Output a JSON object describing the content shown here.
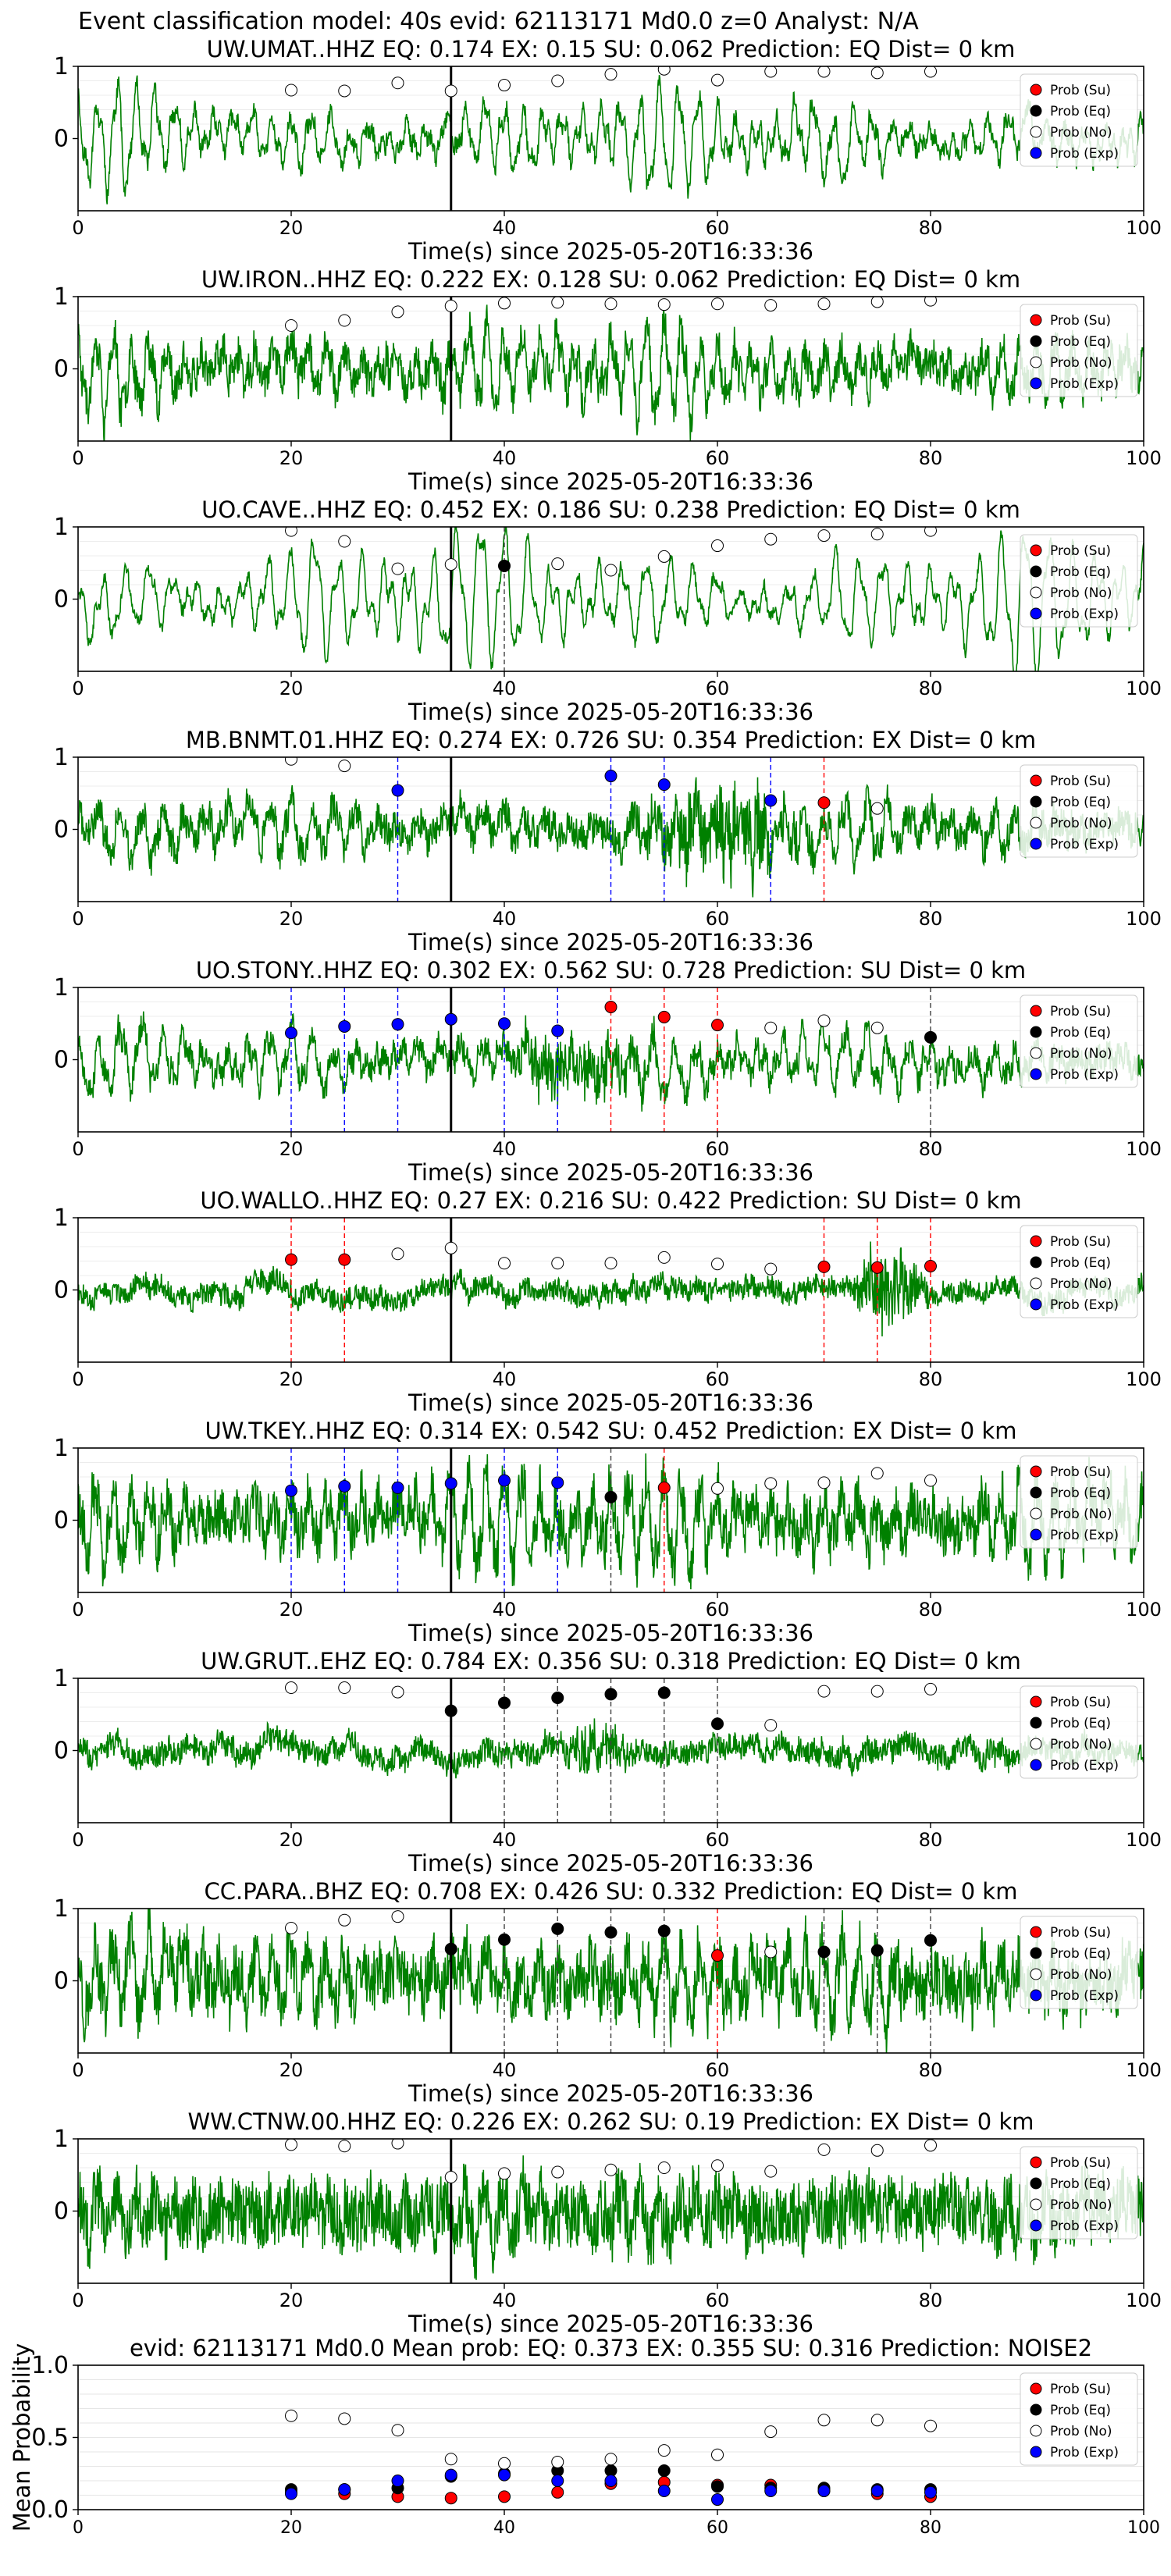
{
  "figure": {
    "suptitle": "Event classification model: 40s evid: 62113171 Md0.0 z=0 Analyst: N/A"
  },
  "legend_labels": [
    "Prob (Su)",
    "Prob (Eq)",
    "Prob (No)",
    "Prob (Exp)"
  ],
  "colors": {
    "waveform": "#008000",
    "su": "#ff0000",
    "eq": "#000000",
    "no": "#ffffff",
    "exp": "#0000ff",
    "origin_line": "#000000",
    "su_line": "#ff0000",
    "eq_line": "#404040",
    "exp_line": "#0000ff"
  },
  "chart_data": [
    {
      "type": "line",
      "title": "UW.UMAT..HHZ   EQ: 0.174  EX: 0.15  SU: 0.062   Prediction: EQ    Dist= 0 km",
      "xlabel": "Time(s) since 2025-05-20T16:33:36",
      "ylabel": "",
      "xlim": [
        0,
        100
      ],
      "ylim": [
        -1,
        1
      ],
      "xticks": [
        "0",
        "20",
        "40",
        "60",
        "80",
        "100"
      ],
      "yticks": [
        "0",
        "1"
      ],
      "origin_time": 35,
      "waveform": {
        "amp": 0.55,
        "freq": 0.55,
        "noise": 0.12,
        "seed": 11
      },
      "markers": [
        {
          "t": 20,
          "cls": "no",
          "p": 0.67
        },
        {
          "t": 25,
          "cls": "no",
          "p": 0.66
        },
        {
          "t": 30,
          "cls": "no",
          "p": 0.77
        },
        {
          "t": 35,
          "cls": "no",
          "p": 0.66
        },
        {
          "t": 40,
          "cls": "no",
          "p": 0.74
        },
        {
          "t": 45,
          "cls": "no",
          "p": 0.8
        },
        {
          "t": 50,
          "cls": "no",
          "p": 0.89
        },
        {
          "t": 55,
          "cls": "no",
          "p": 0.96
        },
        {
          "t": 60,
          "cls": "no",
          "p": 0.81
        },
        {
          "t": 65,
          "cls": "no",
          "p": 0.93
        },
        {
          "t": 70,
          "cls": "no",
          "p": 0.93
        },
        {
          "t": 75,
          "cls": "no",
          "p": 0.91
        },
        {
          "t": 80,
          "cls": "no",
          "p": 0.93
        }
      ]
    },
    {
      "type": "line",
      "title": "UW.IRON..HHZ   EQ: 0.222  EX: 0.128  SU: 0.062   Prediction: EQ    Dist= 0 km",
      "xlabel": "Time(s) since 2025-05-20T16:33:36",
      "ylabel": "",
      "xlim": [
        0,
        100
      ],
      "ylim": [
        -1,
        1
      ],
      "xticks": [
        "0",
        "20",
        "40",
        "60",
        "80",
        "100"
      ],
      "yticks": [
        "0",
        "1"
      ],
      "origin_time": 35,
      "waveform": {
        "amp": 0.5,
        "freq": 0.6,
        "noise": 0.25,
        "seed": 23
      },
      "markers": [
        {
          "t": 20,
          "cls": "no",
          "p": 0.6
        },
        {
          "t": 25,
          "cls": "no",
          "p": 0.67
        },
        {
          "t": 30,
          "cls": "no",
          "p": 0.79
        },
        {
          "t": 35,
          "cls": "no",
          "p": 0.87
        },
        {
          "t": 40,
          "cls": "no",
          "p": 0.91
        },
        {
          "t": 45,
          "cls": "no",
          "p": 0.92
        },
        {
          "t": 50,
          "cls": "no",
          "p": 0.9
        },
        {
          "t": 55,
          "cls": "no",
          "p": 0.89
        },
        {
          "t": 60,
          "cls": "no",
          "p": 0.9
        },
        {
          "t": 65,
          "cls": "no",
          "p": 0.88
        },
        {
          "t": 70,
          "cls": "no",
          "p": 0.9
        },
        {
          "t": 75,
          "cls": "no",
          "p": 0.93
        },
        {
          "t": 80,
          "cls": "no",
          "p": 0.95
        }
      ]
    },
    {
      "type": "line",
      "title": "UO.CAVE..HHZ   EQ: 0.452  EX: 0.186  SU: 0.238   Prediction: EQ    Dist= 0 km",
      "xlabel": "Time(s) since 2025-05-20T16:33:36",
      "ylabel": "",
      "xlim": [
        0,
        100
      ],
      "ylim": [
        -1,
        1
      ],
      "xticks": [
        "0",
        "20",
        "40",
        "60",
        "80",
        "100"
      ],
      "yticks": [
        "0",
        "1"
      ],
      "origin_time": 35,
      "waveform": {
        "amp": 0.75,
        "freq": 0.45,
        "noise": 0.08,
        "seed": 37
      },
      "markers": [
        {
          "t": 20,
          "cls": "no",
          "p": 0.95
        },
        {
          "t": 25,
          "cls": "no",
          "p": 0.8
        },
        {
          "t": 30,
          "cls": "no",
          "p": 0.42
        },
        {
          "t": 35,
          "cls": "no",
          "p": 0.48
        },
        {
          "t": 40,
          "cls": "eq",
          "p": 0.46
        },
        {
          "t": 45,
          "cls": "no",
          "p": 0.49
        },
        {
          "t": 50,
          "cls": "no",
          "p": 0.4
        },
        {
          "t": 55,
          "cls": "no",
          "p": 0.59
        },
        {
          "t": 60,
          "cls": "no",
          "p": 0.74
        },
        {
          "t": 65,
          "cls": "no",
          "p": 0.83
        },
        {
          "t": 70,
          "cls": "no",
          "p": 0.88
        },
        {
          "t": 75,
          "cls": "no",
          "p": 0.9
        },
        {
          "t": 80,
          "cls": "no",
          "p": 0.95
        }
      ]
    },
    {
      "type": "line",
      "title": "MB.BNMT.01.HHZ   EQ: 0.274  EX: 0.726  SU: 0.354   Prediction: EX    Dist= 0 km",
      "xlabel": "Time(s) since 2025-05-20T16:33:36",
      "ylabel": "",
      "xlim": [
        0,
        100
      ],
      "ylim": [
        -1,
        1
      ],
      "xticks": [
        "0",
        "20",
        "40",
        "60",
        "80",
        "100"
      ],
      "yticks": [
        "0",
        "1"
      ],
      "origin_time": 35,
      "waveform": {
        "amp": 0.3,
        "freq": 0.5,
        "noise": 0.22,
        "seed": 41,
        "burst": [
          50,
          70,
          2.2
        ]
      },
      "markers": [
        {
          "t": 20,
          "cls": "no",
          "p": 0.97
        },
        {
          "t": 25,
          "cls": "no",
          "p": 0.88
        },
        {
          "t": 30,
          "cls": "exp",
          "p": 0.54
        },
        {
          "t": 50,
          "cls": "exp",
          "p": 0.74
        },
        {
          "t": 55,
          "cls": "exp",
          "p": 0.62
        },
        {
          "t": 65,
          "cls": "exp",
          "p": 0.4
        },
        {
          "t": 70,
          "cls": "su",
          "p": 0.37
        },
        {
          "t": 75,
          "cls": "no",
          "p": 0.29
        }
      ]
    },
    {
      "type": "line",
      "title": "UO.STONY..HHZ   EQ: 0.302  EX: 0.562  SU: 0.728   Prediction: SU    Dist= 0 km",
      "xlabel": "Time(s) since 2025-05-20T16:33:36",
      "ylabel": "",
      "xlim": [
        0,
        100
      ],
      "ylim": [
        -1,
        1
      ],
      "xticks": [
        "0",
        "20",
        "40",
        "60",
        "80",
        "100"
      ],
      "yticks": [
        "0",
        "1"
      ],
      "origin_time": 35,
      "waveform": {
        "amp": 0.35,
        "freq": 0.5,
        "noise": 0.18,
        "seed": 53,
        "burst": [
          38,
          56,
          1.8
        ]
      },
      "markers": [
        {
          "t": 20,
          "cls": "exp",
          "p": 0.37
        },
        {
          "t": 25,
          "cls": "exp",
          "p": 0.46
        },
        {
          "t": 30,
          "cls": "exp",
          "p": 0.49
        },
        {
          "t": 35,
          "cls": "exp",
          "p": 0.56
        },
        {
          "t": 40,
          "cls": "exp",
          "p": 0.5
        },
        {
          "t": 45,
          "cls": "exp",
          "p": 0.4
        },
        {
          "t": 50,
          "cls": "su",
          "p": 0.73
        },
        {
          "t": 55,
          "cls": "su",
          "p": 0.59
        },
        {
          "t": 60,
          "cls": "su",
          "p": 0.48
        },
        {
          "t": 65,
          "cls": "no",
          "p": 0.44
        },
        {
          "t": 70,
          "cls": "no",
          "p": 0.54
        },
        {
          "t": 75,
          "cls": "no",
          "p": 0.44
        },
        {
          "t": 80,
          "cls": "eq",
          "p": 0.31
        }
      ]
    },
    {
      "type": "line",
      "title": "UO.WALLO..HHZ   EQ: 0.27  EX: 0.216  SU: 0.422   Prediction: SU    Dist= 0 km",
      "xlabel": "Time(s) since 2025-05-20T16:33:36",
      "ylabel": "",
      "xlim": [
        0,
        100
      ],
      "ylim": [
        -1,
        1
      ],
      "xticks": [
        "0",
        "20",
        "40",
        "60",
        "80",
        "100"
      ],
      "yticks": [
        "0",
        "1"
      ],
      "origin_time": 35,
      "waveform": {
        "amp": 0.04,
        "freq": 0.5,
        "noise": 0.14,
        "seed": 67,
        "burst": [
          72,
          80,
          4.0
        ]
      },
      "markers": [
        {
          "t": 20,
          "cls": "su",
          "p": 0.42
        },
        {
          "t": 25,
          "cls": "su",
          "p": 0.42
        },
        {
          "t": 30,
          "cls": "no",
          "p": 0.5
        },
        {
          "t": 35,
          "cls": "no",
          "p": 0.58
        },
        {
          "t": 40,
          "cls": "no",
          "p": 0.37
        },
        {
          "t": 45,
          "cls": "no",
          "p": 0.37
        },
        {
          "t": 50,
          "cls": "no",
          "p": 0.37
        },
        {
          "t": 55,
          "cls": "no",
          "p": 0.45
        },
        {
          "t": 60,
          "cls": "no",
          "p": 0.36
        },
        {
          "t": 65,
          "cls": "no",
          "p": 0.29
        },
        {
          "t": 70,
          "cls": "su",
          "p": 0.32
        },
        {
          "t": 75,
          "cls": "su",
          "p": 0.31
        },
        {
          "t": 80,
          "cls": "su",
          "p": 0.33
        }
      ]
    },
    {
      "type": "line",
      "title": "UW.TKEY..HHZ   EQ: 0.314  EX: 0.542  SU: 0.452   Prediction: EX    Dist= 0 km",
      "xlabel": "Time(s) since 2025-05-20T16:33:36",
      "ylabel": "",
      "xlim": [
        0,
        100
      ],
      "ylim": [
        -1,
        1
      ],
      "xticks": [
        "0",
        "20",
        "40",
        "60",
        "80",
        "100"
      ],
      "yticks": [
        "0",
        "1"
      ],
      "origin_time": 35,
      "waveform": {
        "amp": 0.55,
        "freq": 0.6,
        "noise": 0.35,
        "seed": 79
      },
      "markers": [
        {
          "t": 20,
          "cls": "exp",
          "p": 0.41
        },
        {
          "t": 25,
          "cls": "exp",
          "p": 0.47
        },
        {
          "t": 30,
          "cls": "exp",
          "p": 0.45
        },
        {
          "t": 35,
          "cls": "exp",
          "p": 0.51
        },
        {
          "t": 40,
          "cls": "exp",
          "p": 0.55
        },
        {
          "t": 45,
          "cls": "exp",
          "p": 0.52
        },
        {
          "t": 50,
          "cls": "eq",
          "p": 0.32
        },
        {
          "t": 55,
          "cls": "su",
          "p": 0.45
        },
        {
          "t": 60,
          "cls": "no",
          "p": 0.44
        },
        {
          "t": 65,
          "cls": "no",
          "p": 0.51
        },
        {
          "t": 70,
          "cls": "no",
          "p": 0.52
        },
        {
          "t": 75,
          "cls": "no",
          "p": 0.65
        },
        {
          "t": 80,
          "cls": "no",
          "p": 0.55
        }
      ]
    },
    {
      "type": "line",
      "title": "UW.GRUT..EHZ   EQ: 0.784  EX: 0.356  SU: 0.318   Prediction: EQ    Dist= 0 km",
      "xlabel": "Time(s) since 2025-05-20T16:33:36",
      "ylabel": "",
      "xlim": [
        0,
        100
      ],
      "ylim": [
        -1,
        1
      ],
      "xticks": [
        "0",
        "20",
        "40",
        "60",
        "80",
        "100"
      ],
      "yticks": [
        "0",
        "1"
      ],
      "origin_time": 35,
      "waveform": {
        "amp": 0.03,
        "freq": 0.5,
        "noise": 0.16,
        "seed": 83,
        "burst": [
          45,
          52,
          2.0
        ]
      },
      "markers": [
        {
          "t": 20,
          "cls": "no",
          "p": 0.87
        },
        {
          "t": 25,
          "cls": "no",
          "p": 0.87
        },
        {
          "t": 30,
          "cls": "no",
          "p": 0.81
        },
        {
          "t": 35,
          "cls": "eq",
          "p": 0.55
        },
        {
          "t": 40,
          "cls": "eq",
          "p": 0.66
        },
        {
          "t": 45,
          "cls": "eq",
          "p": 0.73
        },
        {
          "t": 50,
          "cls": "eq",
          "p": 0.78
        },
        {
          "t": 55,
          "cls": "eq",
          "p": 0.8
        },
        {
          "t": 60,
          "cls": "eq",
          "p": 0.37
        },
        {
          "t": 65,
          "cls": "no",
          "p": 0.35
        },
        {
          "t": 70,
          "cls": "no",
          "p": 0.82
        },
        {
          "t": 75,
          "cls": "no",
          "p": 0.82
        },
        {
          "t": 80,
          "cls": "no",
          "p": 0.85
        }
      ]
    },
    {
      "type": "line",
      "title": "CC.PARA..BHZ   EQ: 0.708  EX: 0.426  SU: 0.332   Prediction: EQ    Dist= 0 km",
      "xlabel": "Time(s) since 2025-05-20T16:33:36",
      "ylabel": "",
      "xlim": [
        0,
        100
      ],
      "ylim": [
        -1,
        1
      ],
      "xticks": [
        "0",
        "20",
        "40",
        "60",
        "80",
        "100"
      ],
      "yticks": [
        "0",
        "1"
      ],
      "origin_time": 35,
      "waveform": {
        "amp": 0.45,
        "freq": 0.6,
        "noise": 0.4,
        "seed": 97
      },
      "markers": [
        {
          "t": 20,
          "cls": "no",
          "p": 0.73
        },
        {
          "t": 25,
          "cls": "no",
          "p": 0.84
        },
        {
          "t": 30,
          "cls": "no",
          "p": 0.89
        },
        {
          "t": 35,
          "cls": "eq",
          "p": 0.44
        },
        {
          "t": 40,
          "cls": "eq",
          "p": 0.57
        },
        {
          "t": 45,
          "cls": "eq",
          "p": 0.72
        },
        {
          "t": 50,
          "cls": "eq",
          "p": 0.67
        },
        {
          "t": 55,
          "cls": "eq",
          "p": 0.69
        },
        {
          "t": 60,
          "cls": "su",
          "p": 0.35
        },
        {
          "t": 65,
          "cls": "no",
          "p": 0.4
        },
        {
          "t": 70,
          "cls": "eq",
          "p": 0.4
        },
        {
          "t": 75,
          "cls": "eq",
          "p": 0.42
        },
        {
          "t": 80,
          "cls": "eq",
          "p": 0.56
        }
      ]
    },
    {
      "type": "line",
      "title": "WW.CTNW.00.HHZ   EQ: 0.226  EX: 0.262  SU: 0.19   Prediction: EX    Dist= 0 km",
      "xlabel": "Time(s) since 2025-05-20T16:33:36",
      "ylabel": "",
      "xlim": [
        0,
        100
      ],
      "ylim": [
        -1,
        1
      ],
      "xticks": [
        "0",
        "20",
        "40",
        "60",
        "80",
        "100"
      ],
      "yticks": [
        "0",
        "1"
      ],
      "origin_time": 35,
      "waveform": {
        "amp": 0.3,
        "freq": 0.55,
        "noise": 0.45,
        "seed": 101
      },
      "markers": [
        {
          "t": 20,
          "cls": "no",
          "p": 0.92
        },
        {
          "t": 25,
          "cls": "no",
          "p": 0.9
        },
        {
          "t": 30,
          "cls": "no",
          "p": 0.94
        },
        {
          "t": 35,
          "cls": "no",
          "p": 0.47
        },
        {
          "t": 40,
          "cls": "no",
          "p": 0.52
        },
        {
          "t": 45,
          "cls": "no",
          "p": 0.54
        },
        {
          "t": 50,
          "cls": "no",
          "p": 0.57
        },
        {
          "t": 55,
          "cls": "no",
          "p": 0.6
        },
        {
          "t": 60,
          "cls": "no",
          "p": 0.63
        },
        {
          "t": 65,
          "cls": "no",
          "p": 0.55
        },
        {
          "t": 70,
          "cls": "no",
          "p": 0.85
        },
        {
          "t": 75,
          "cls": "no",
          "p": 0.84
        },
        {
          "t": 80,
          "cls": "no",
          "p": 0.91
        }
      ]
    },
    {
      "type": "scatter",
      "title": "evid: 62113171  Md0.0   Mean prob:   EQ: 0.373  EX: 0.355  SU: 0.316   Prediction: NOISE2",
      "xlabel": "",
      "ylabel": "Mean Probability",
      "xlim": [
        0,
        100
      ],
      "ylim": [
        0,
        1
      ],
      "xticks": [
        "0",
        "20",
        "40",
        "60",
        "80",
        "100"
      ],
      "yticks": [
        "0.0",
        "0.5",
        "1.0"
      ],
      "x": [
        20,
        25,
        30,
        35,
        40,
        45,
        50,
        55,
        60,
        65,
        70,
        75,
        80
      ],
      "series": [
        {
          "name": "Prob (Su)",
          "cls": "su",
          "values": [
            0.12,
            0.11,
            0.09,
            0.08,
            0.09,
            0.12,
            0.18,
            0.19,
            0.17,
            0.17,
            0.13,
            0.11,
            0.09
          ]
        },
        {
          "name": "Prob (Eq)",
          "cls": "eq",
          "values": [
            0.14,
            0.14,
            0.15,
            0.23,
            0.25,
            0.27,
            0.27,
            0.27,
            0.16,
            0.15,
            0.15,
            0.14,
            0.14
          ]
        },
        {
          "name": "Prob (No)",
          "cls": "no",
          "values": [
            0.65,
            0.63,
            0.55,
            0.35,
            0.32,
            0.33,
            0.35,
            0.41,
            0.38,
            0.54,
            0.62,
            0.62,
            0.58
          ]
        },
        {
          "name": "Prob (Exp)",
          "cls": "exp",
          "values": [
            0.11,
            0.14,
            0.2,
            0.24,
            0.24,
            0.2,
            0.2,
            0.13,
            0.07,
            0.13,
            0.13,
            0.13,
            0.12
          ]
        }
      ]
    }
  ]
}
